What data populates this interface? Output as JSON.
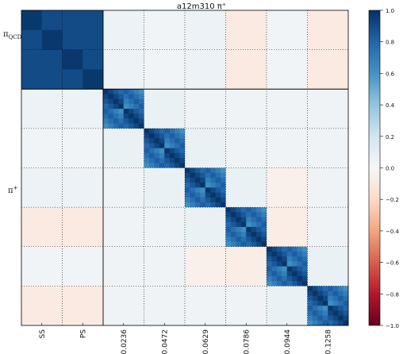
{
  "chart_data": {
    "type": "heatmap",
    "title": "a12m310 π⁺",
    "matrix_layout": {
      "blocks": [
        {
          "name": "πQCD",
          "size": 2,
          "sub_x_labels": [
            "SS",
            "PS"
          ]
        },
        {
          "name": "π⁺",
          "size": 6,
          "sub_x_labels": [
            "0.0236",
            "0.0472",
            "0.0629",
            "0.0786",
            "0.0944",
            "0.1258"
          ]
        }
      ],
      "points_per_segment": 28,
      "description": "Correlation matrix; diagonal segments show strong positive correlation (~1.0) with checkerboard sub-structure; off-diagonal values are small (|r| < 0.2)."
    },
    "y_block_labels": [
      {
        "main": "π",
        "sub": "QCD"
      },
      {
        "main": "π",
        "sup": "+"
      }
    ],
    "x_tick_labels": [
      "SS",
      "PS",
      "0.0236",
      "0.0472",
      "0.0629",
      "0.0786",
      "0.0944",
      "0.1258"
    ],
    "colorbar": {
      "range": [
        -1.0,
        1.0
      ],
      "ticks": [
        "1.0",
        "0.8",
        "0.6",
        "0.4",
        "0.2",
        "0.0",
        "−0.2",
        "−0.4",
        "−0.6",
        "−0.8",
        "−1.0"
      ],
      "colormap": "RdBu"
    },
    "colors": {
      "strong_positive": "#08306b",
      "strong_negative": "#67001f",
      "neutral": "#f7f7f7"
    }
  }
}
